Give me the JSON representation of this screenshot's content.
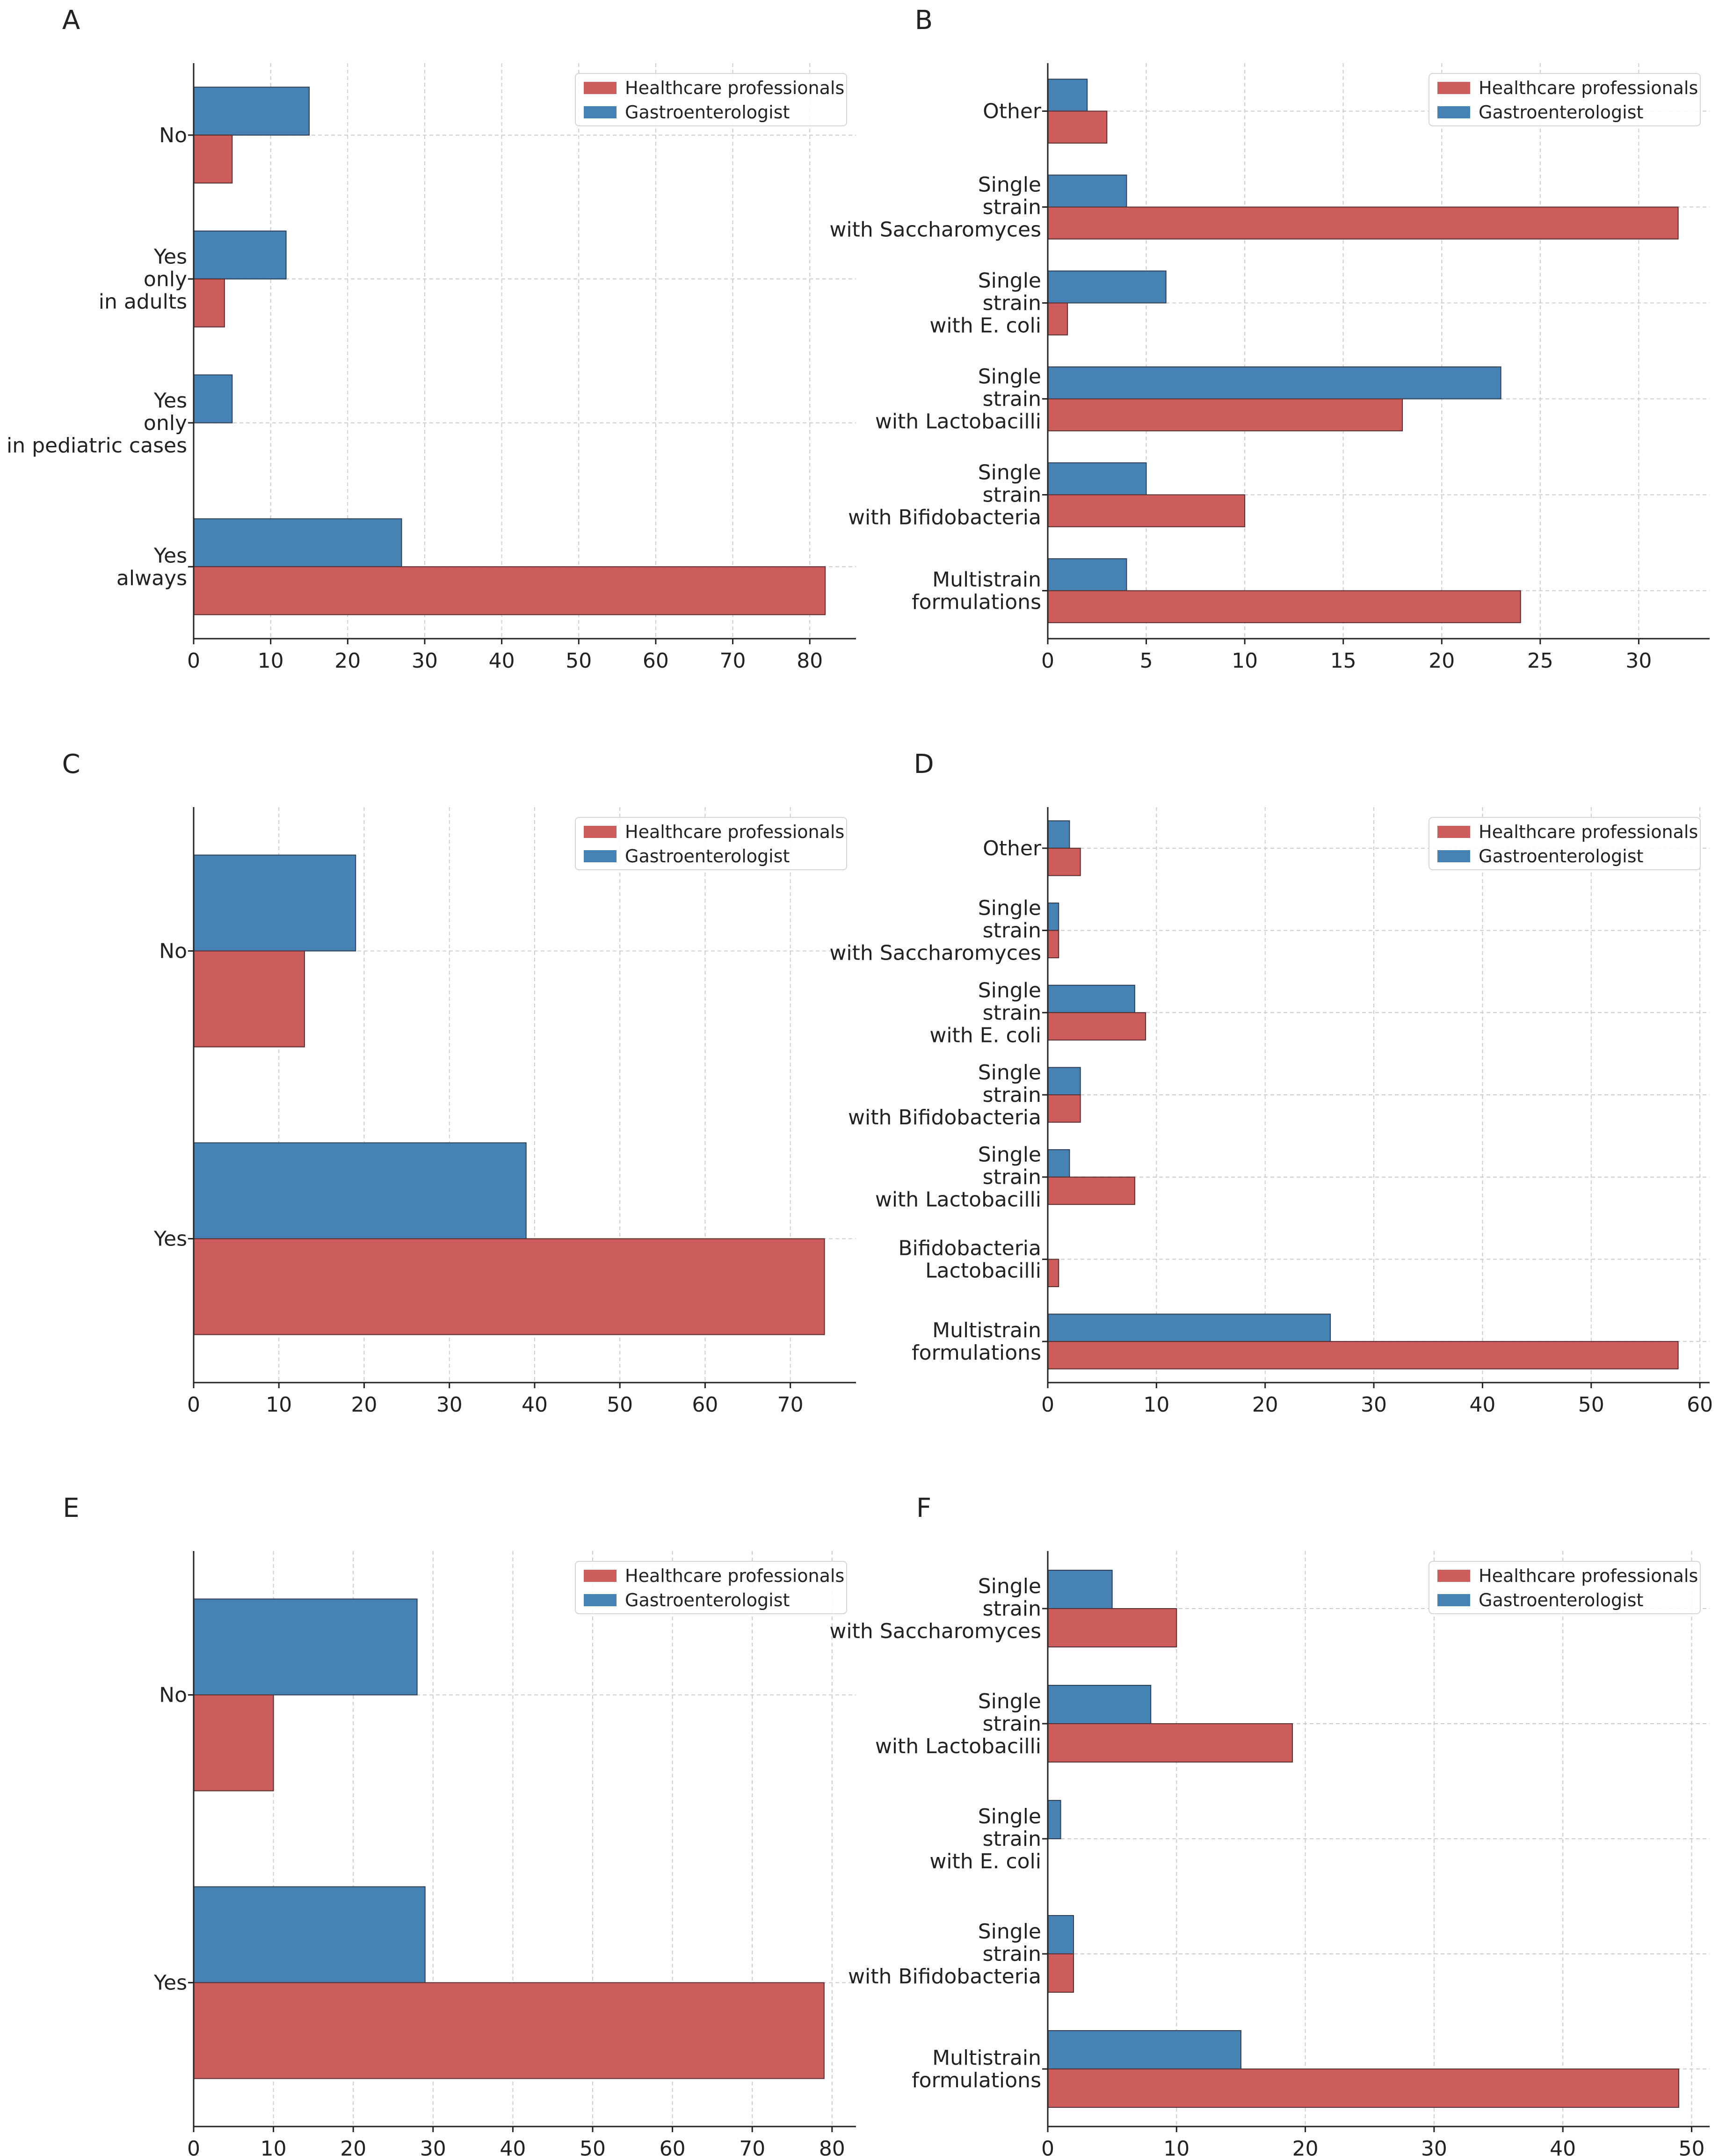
{
  "colors": {
    "hcp": "#cd5c5c",
    "gastro": "#4682b4",
    "grid": "#cccccc",
    "axis": "#222222"
  },
  "legend": {
    "hcp": "Healthcare professionals",
    "gastro": "Gastroenterologist"
  },
  "chart_data": [
    {
      "panel": "A",
      "type": "bar",
      "orientation": "horizontal",
      "categories": [
        "No",
        "Yes\nonly\nin adults",
        "Yes\nonly\nin pediatric cases",
        "Yes\nalways"
      ],
      "series": [
        {
          "name": "Gastroenterologist",
          "values": [
            15,
            12,
            5,
            27
          ]
        },
        {
          "name": "Healthcare professionals",
          "values": [
            5,
            4,
            0,
            82
          ]
        }
      ],
      "xlim": [
        0,
        86
      ],
      "xticks": [
        0,
        10,
        20,
        30,
        40,
        50,
        60,
        70,
        80
      ],
      "legend_position": "top-right",
      "grid": true
    },
    {
      "panel": "B",
      "type": "bar",
      "orientation": "horizontal",
      "categories": [
        "Other",
        "Single\nstrain\nwith Saccharomyces",
        "Single\nstrain\nwith E. coli",
        "Single\nstrain\nwith Lactobacilli",
        "Single\nstrain\nwith Bifidobacteria",
        "Multistrain\nformulations"
      ],
      "series": [
        {
          "name": "Gastroenterologist",
          "values": [
            2,
            4,
            6,
            23,
            5,
            4
          ]
        },
        {
          "name": "Healthcare professionals",
          "values": [
            3,
            32,
            1,
            18,
            10,
            24
          ]
        }
      ],
      "xlim": [
        0,
        33.6
      ],
      "xticks": [
        0,
        5,
        10,
        15,
        20,
        25,
        30
      ],
      "legend_position": "top-right",
      "grid": true
    },
    {
      "panel": "C",
      "type": "bar",
      "orientation": "horizontal",
      "categories": [
        "No",
        "Yes"
      ],
      "series": [
        {
          "name": "Gastroenterologist",
          "values": [
            19,
            39
          ]
        },
        {
          "name": "Healthcare professionals",
          "values": [
            13,
            74
          ]
        }
      ],
      "xlim": [
        0,
        77.7
      ],
      "xticks": [
        0,
        10,
        20,
        30,
        40,
        50,
        60,
        70
      ],
      "legend_position": "top-right",
      "grid": true
    },
    {
      "panel": "D",
      "type": "bar",
      "orientation": "horizontal",
      "categories": [
        "Other",
        "Single\nstrain\nwith Saccharomyces",
        "Single\nstrain\nwith E. coli",
        "Single\nstrain\nwith Bifidobacteria",
        "Single\nstrain\nwith Lactobacilli",
        "Bifidobacteria\nLactobacilli",
        "Multistrain\nformulations"
      ],
      "series": [
        {
          "name": "Gastroenterologist",
          "values": [
            2,
            1,
            8,
            3,
            2,
            0,
            26
          ]
        },
        {
          "name": "Healthcare professionals",
          "values": [
            3,
            1,
            9,
            3,
            8,
            1,
            58
          ]
        }
      ],
      "xlim": [
        0,
        60.9
      ],
      "xticks": [
        0,
        10,
        20,
        30,
        40,
        50,
        60
      ],
      "legend_position": "top-right",
      "grid": true
    },
    {
      "panel": "E",
      "type": "bar",
      "orientation": "horizontal",
      "categories": [
        "No",
        "Yes"
      ],
      "series": [
        {
          "name": "Gastroenterologist",
          "values": [
            28,
            29
          ]
        },
        {
          "name": "Healthcare professionals",
          "values": [
            10,
            79
          ]
        }
      ],
      "xlim": [
        0,
        83
      ],
      "xticks": [
        0,
        10,
        20,
        30,
        40,
        50,
        60,
        70,
        80
      ],
      "legend_position": "top-right",
      "grid": true
    },
    {
      "panel": "F",
      "type": "bar",
      "orientation": "horizontal",
      "categories": [
        "Single\nstrain\nwith Saccharomyces",
        "Single\nstrain\nwith Lactobacilli",
        "Single\nstrain\nwith E. coli",
        "Single\nstrain\nwith Bifidobacteria",
        "Multistrain\nformulations"
      ],
      "series": [
        {
          "name": "Gastroenterologist",
          "values": [
            5,
            8,
            1,
            2,
            15
          ]
        },
        {
          "name": "Healthcare professionals",
          "values": [
            10,
            19,
            0,
            2,
            49
          ]
        }
      ],
      "xlim": [
        0,
        51.4
      ],
      "xticks": [
        0,
        10,
        20,
        30,
        40,
        50
      ],
      "legend_position": "top-right",
      "grid": true
    }
  ]
}
